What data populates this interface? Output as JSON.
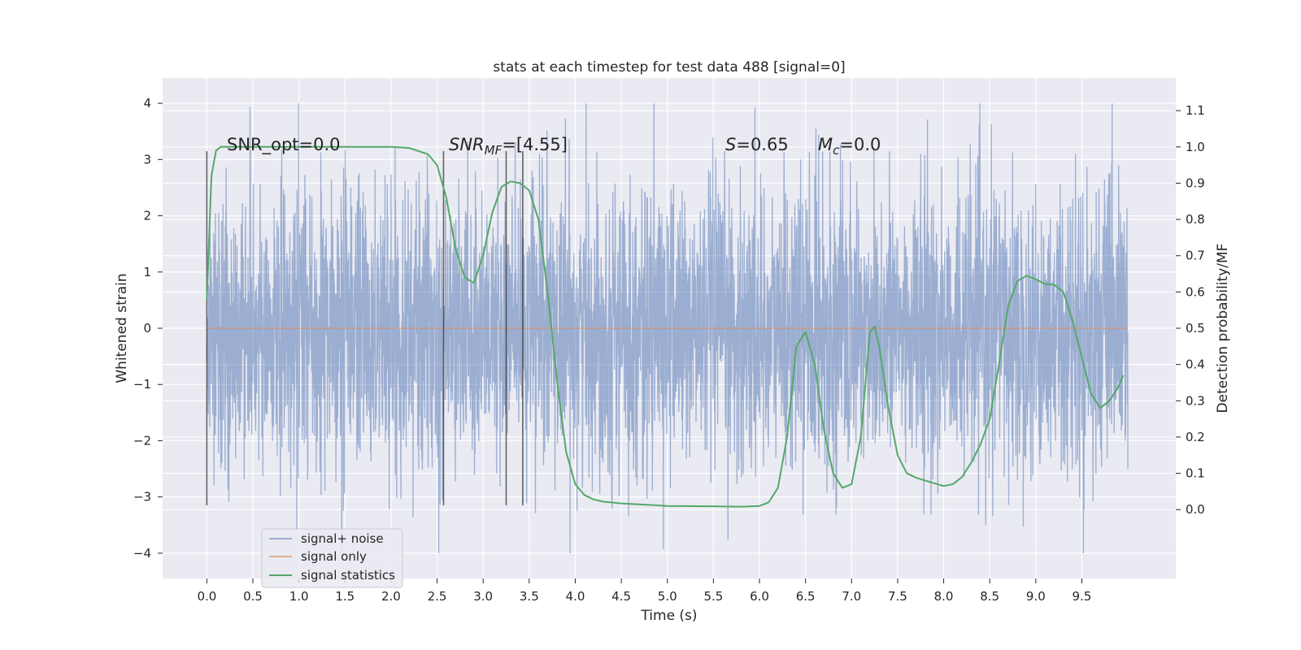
{
  "chart_data": {
    "type": "line",
    "title": "stats at each timestep for test data 488 [signal=0]",
    "xlabel": "Time (s)",
    "ylabel": "Whitened strain",
    "ylabel_right": "Detection probability/MF",
    "xlim": [
      -0.48,
      10.52
    ],
    "ylim": [
      -4.45,
      4.45
    ],
    "ylim_right": [
      -0.19,
      1.19
    ],
    "x_ticks": [
      0.0,
      0.5,
      1.0,
      1.5,
      2.0,
      2.5,
      3.0,
      3.5,
      4.0,
      4.5,
      5.0,
      5.5,
      6.0,
      6.5,
      7.0,
      7.5,
      8.0,
      8.5,
      9.0,
      9.5
    ],
    "x_tick_labels": [
      "0.0",
      "0.5",
      "1.0",
      "1.5",
      "2.0",
      "2.5",
      "3.0",
      "3.5",
      "4.0",
      "4.5",
      "5.0",
      "5.5",
      "6.0",
      "6.5",
      "7.0",
      "7.5",
      "8.0",
      "8.5",
      "9.0",
      "9.5"
    ],
    "y_ticks": [
      -4,
      -3,
      -2,
      -1,
      0,
      1,
      2,
      3,
      4
    ],
    "y_tick_labels": [
      "−4",
      "−3",
      "−2",
      "−1",
      "0",
      "1",
      "2",
      "3",
      "4"
    ],
    "y_right_ticks": [
      0.0,
      0.1,
      0.2,
      0.3,
      0.4,
      0.5,
      0.6,
      0.7,
      0.8,
      0.9,
      1.0,
      1.1
    ],
    "y_right_tick_labels": [
      "0.0",
      "0.1",
      "0.2",
      "0.3",
      "0.4",
      "0.5",
      "0.6",
      "0.7",
      "0.8",
      "0.9",
      "1.0",
      "1.1"
    ],
    "grid": true,
    "legend_position": "bottom-left",
    "annotations": {
      "snr_opt": "SNR_opt=0.0",
      "snr_mf_main": "SNR",
      "snr_mf_sub": "MF",
      "snr_mf_value": "=[4.55]",
      "s_main": "S",
      "s_value": "=0.65",
      "mc_main": "M",
      "mc_sub": "c",
      "mc_value": "=0.0"
    },
    "series": [
      {
        "name": "signal+ noise",
        "color": "#4c72b0",
        "noise_sd": 1.0,
        "x_range": [
          0.0,
          10.0
        ]
      },
      {
        "name": "signal only",
        "color": "#dd8452",
        "constant_value": 0.0,
        "x_range": [
          0.0,
          10.0
        ]
      },
      {
        "name": "signal statistics",
        "color": "#55a868",
        "axis": "right",
        "x": [
          0.0,
          0.05,
          0.1,
          0.15,
          0.2,
          0.3,
          0.5,
          1.0,
          1.5,
          2.0,
          2.2,
          2.4,
          2.5,
          2.6,
          2.7,
          2.8,
          2.9,
          3.0,
          3.1,
          3.2,
          3.3,
          3.4,
          3.5,
          3.6,
          3.7,
          3.8,
          3.9,
          4.0,
          4.1,
          4.2,
          4.3,
          4.5,
          4.8,
          5.0,
          5.5,
          5.8,
          6.0,
          6.1,
          6.2,
          6.3,
          6.4,
          6.5,
          6.6,
          6.7,
          6.8,
          6.9,
          7.0,
          7.1,
          7.2,
          7.25,
          7.3,
          7.4,
          7.5,
          7.6,
          7.7,
          7.8,
          8.0,
          8.1,
          8.2,
          8.3,
          8.4,
          8.5,
          8.6,
          8.7,
          8.8,
          8.9,
          9.0,
          9.1,
          9.2,
          9.3,
          9.4,
          9.5,
          9.6,
          9.7,
          9.8,
          9.9,
          9.95
        ],
        "values": [
          0.58,
          0.92,
          0.99,
          1.0,
          1.0,
          1.0,
          1.0,
          1.0,
          1.0,
          1.0,
          0.997,
          0.98,
          0.95,
          0.86,
          0.72,
          0.64,
          0.625,
          0.7,
          0.82,
          0.89,
          0.905,
          0.9,
          0.88,
          0.8,
          0.6,
          0.36,
          0.16,
          0.07,
          0.04,
          0.028,
          0.022,
          0.017,
          0.013,
          0.01,
          0.009,
          0.008,
          0.01,
          0.02,
          0.06,
          0.2,
          0.45,
          0.49,
          0.4,
          0.22,
          0.1,
          0.06,
          0.07,
          0.2,
          0.49,
          0.505,
          0.45,
          0.28,
          0.15,
          0.1,
          0.088,
          0.08,
          0.065,
          0.07,
          0.09,
          0.13,
          0.18,
          0.25,
          0.4,
          0.56,
          0.63,
          0.645,
          0.635,
          0.622,
          0.62,
          0.6,
          0.52,
          0.42,
          0.32,
          0.28,
          0.3,
          0.34,
          0.37
        ]
      }
    ],
    "vertical_markers": [
      0.0,
      2.57,
      3.25,
      3.43
    ]
  }
}
